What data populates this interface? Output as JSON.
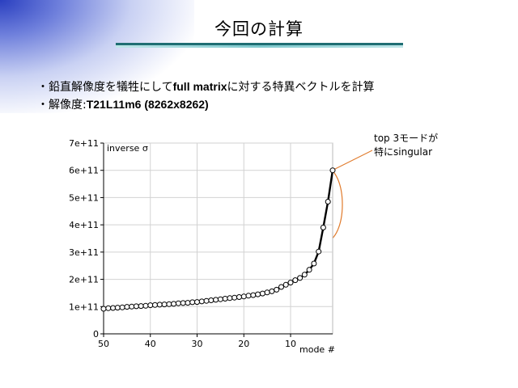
{
  "slide": {
    "title": "今回の計算",
    "bullets": [
      {
        "prefix": "・鉛直解像度を犠牲にして",
        "bold": "full matrix",
        "suffix": "に対する特異ベクトルを計算"
      },
      {
        "prefix": "・解像度:",
        "bold": "T21L11m6 (8262x8262)",
        "suffix": ""
      }
    ],
    "callout": {
      "line1": "top 3モードが",
      "line2": "特にsingular"
    },
    "colors": {
      "title_rule": "#1f6e73",
      "callout_ellipse": "#e07a2b",
      "corner_gradient": "#2a3fc0"
    }
  },
  "chart_data": {
    "type": "line",
    "title": "inverse σ",
    "xlabel": "mode #",
    "ylabel": "",
    "x_reversed": true,
    "xlim": [
      50,
      1
    ],
    "ylim": [
      0,
      700000000000.0
    ],
    "x_ticks": [
      50,
      40,
      30,
      20,
      10
    ],
    "x_tick_labels": [
      "50",
      "40",
      "30",
      "20",
      "10"
    ],
    "y_ticks": [
      0,
      100000000000.0,
      200000000000.0,
      300000000000.0,
      400000000000.0,
      500000000000.0,
      600000000000.0,
      700000000000.0
    ],
    "y_tick_labels": [
      "0",
      "1e+11",
      "2e+11",
      "3e+11",
      "4e+11",
      "5e+11",
      "6e+11",
      "7e+11"
    ],
    "grid": true,
    "series": [
      {
        "x": [
          50,
          49,
          48,
          47,
          46,
          45,
          44,
          43,
          42,
          41,
          40,
          39,
          38,
          37,
          36,
          35,
          34,
          33,
          32,
          31,
          30,
          29,
          28,
          27,
          26,
          25,
          24,
          23,
          22,
          21,
          20,
          19,
          18,
          17,
          16,
          15,
          14,
          13,
          12,
          11,
          10,
          9,
          8,
          7,
          6,
          5,
          4,
          3,
          2,
          1
        ],
        "values": [
          92000000000.0,
          94000000000.0,
          95000000000.0,
          96000000000.0,
          97000000000.0,
          99000000000.0,
          100000000000.0,
          101000000000.0,
          102000000000.0,
          103000000000.0,
          105000000000.0,
          106000000000.0,
          107000000000.0,
          108000000000.0,
          109000000000.0,
          110000000000.0,
          112000000000.0,
          113000000000.0,
          114000000000.0,
          116000000000.0,
          117000000000.0,
          119000000000.0,
          121000000000.0,
          123000000000.0,
          125000000000.0,
          127000000000.0,
          129000000000.0,
          131000000000.0,
          133000000000.0,
          135000000000.0,
          137000000000.0,
          140000000000.0,
          142000000000.0,
          145000000000.0,
          148000000000.0,
          152000000000.0,
          156000000000.0,
          162000000000.0,
          172000000000.0,
          180000000000.0,
          188000000000.0,
          197000000000.0,
          205000000000.0,
          217000000000.0,
          235000000000.0,
          258000000000.0,
          302000000000.0,
          390000000000.0,
          485000000000.0,
          600000000000.0
        ]
      }
    ]
  }
}
